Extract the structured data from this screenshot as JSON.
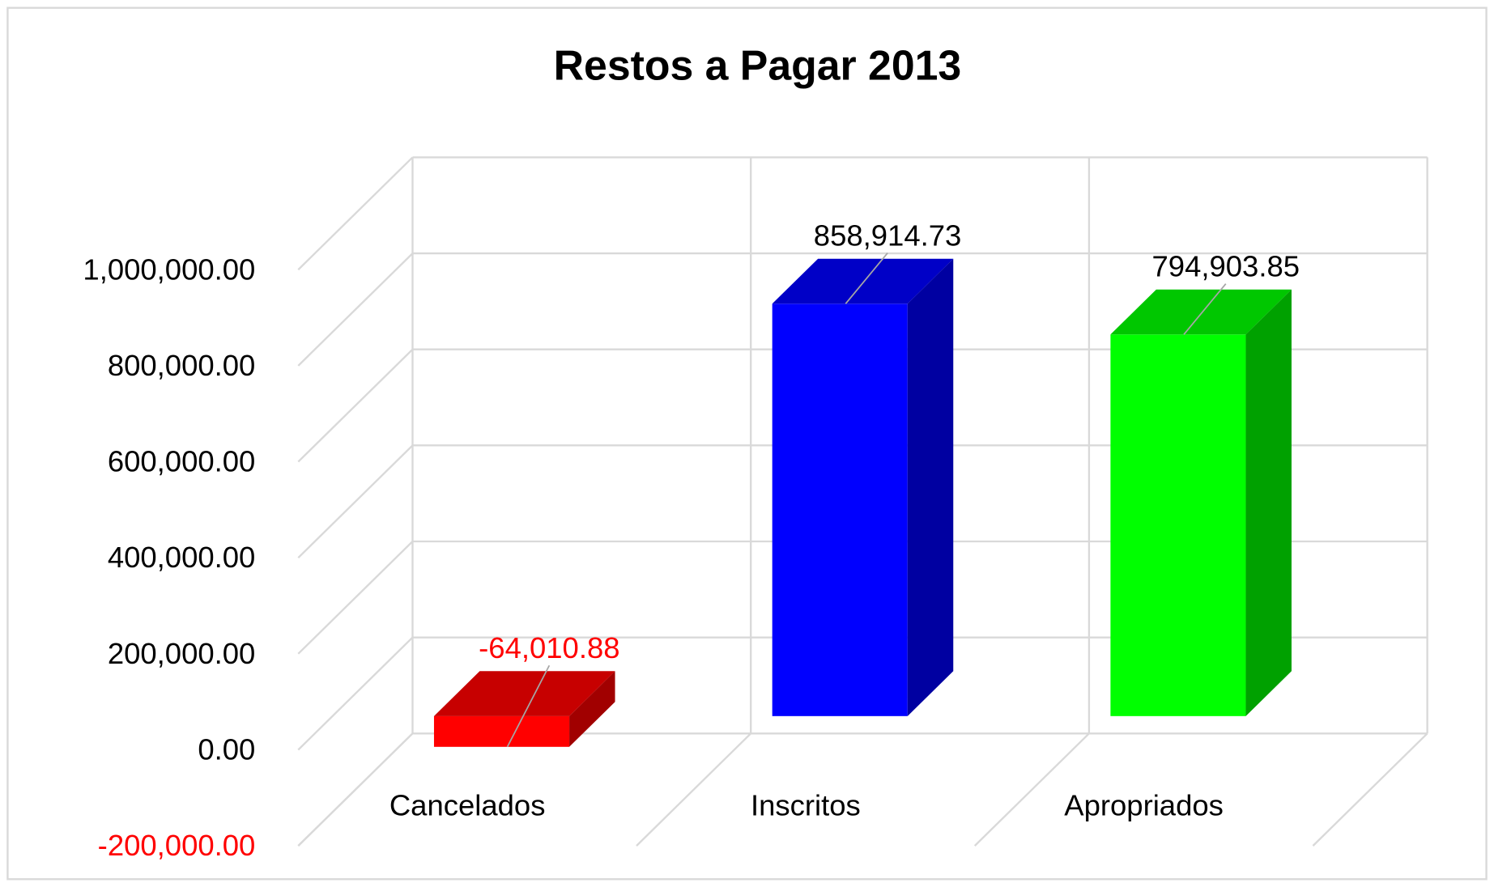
{
  "chart_data": {
    "type": "bar3d",
    "title": "Restos a Pagar 2013",
    "categories": [
      "Cancelados",
      "Inscritos",
      "Apropriados"
    ],
    "values": [
      -64010.88,
      858914.73,
      794903.85
    ],
    "value_labels": [
      "-64,010.88",
      "858,914.73",
      "794,903.85"
    ],
    "colors": [
      "#ff0000",
      "#0000ff",
      "#00ff00"
    ],
    "negative_color": "#ff0000",
    "ylim": [
      -200000,
      1000000
    ],
    "yticks": [
      {
        "value": -200000,
        "label": "-200,000.00"
      },
      {
        "value": 0,
        "label": "0.00"
      },
      {
        "value": 200000,
        "label": "200,000.00"
      },
      {
        "value": 400000,
        "label": "400,000.00"
      },
      {
        "value": 600000,
        "label": "600,000.00"
      },
      {
        "value": 800000,
        "label": "800,000.00"
      },
      {
        "value": 1000000,
        "label": "1,000,000.00"
      }
    ],
    "grid": true
  }
}
